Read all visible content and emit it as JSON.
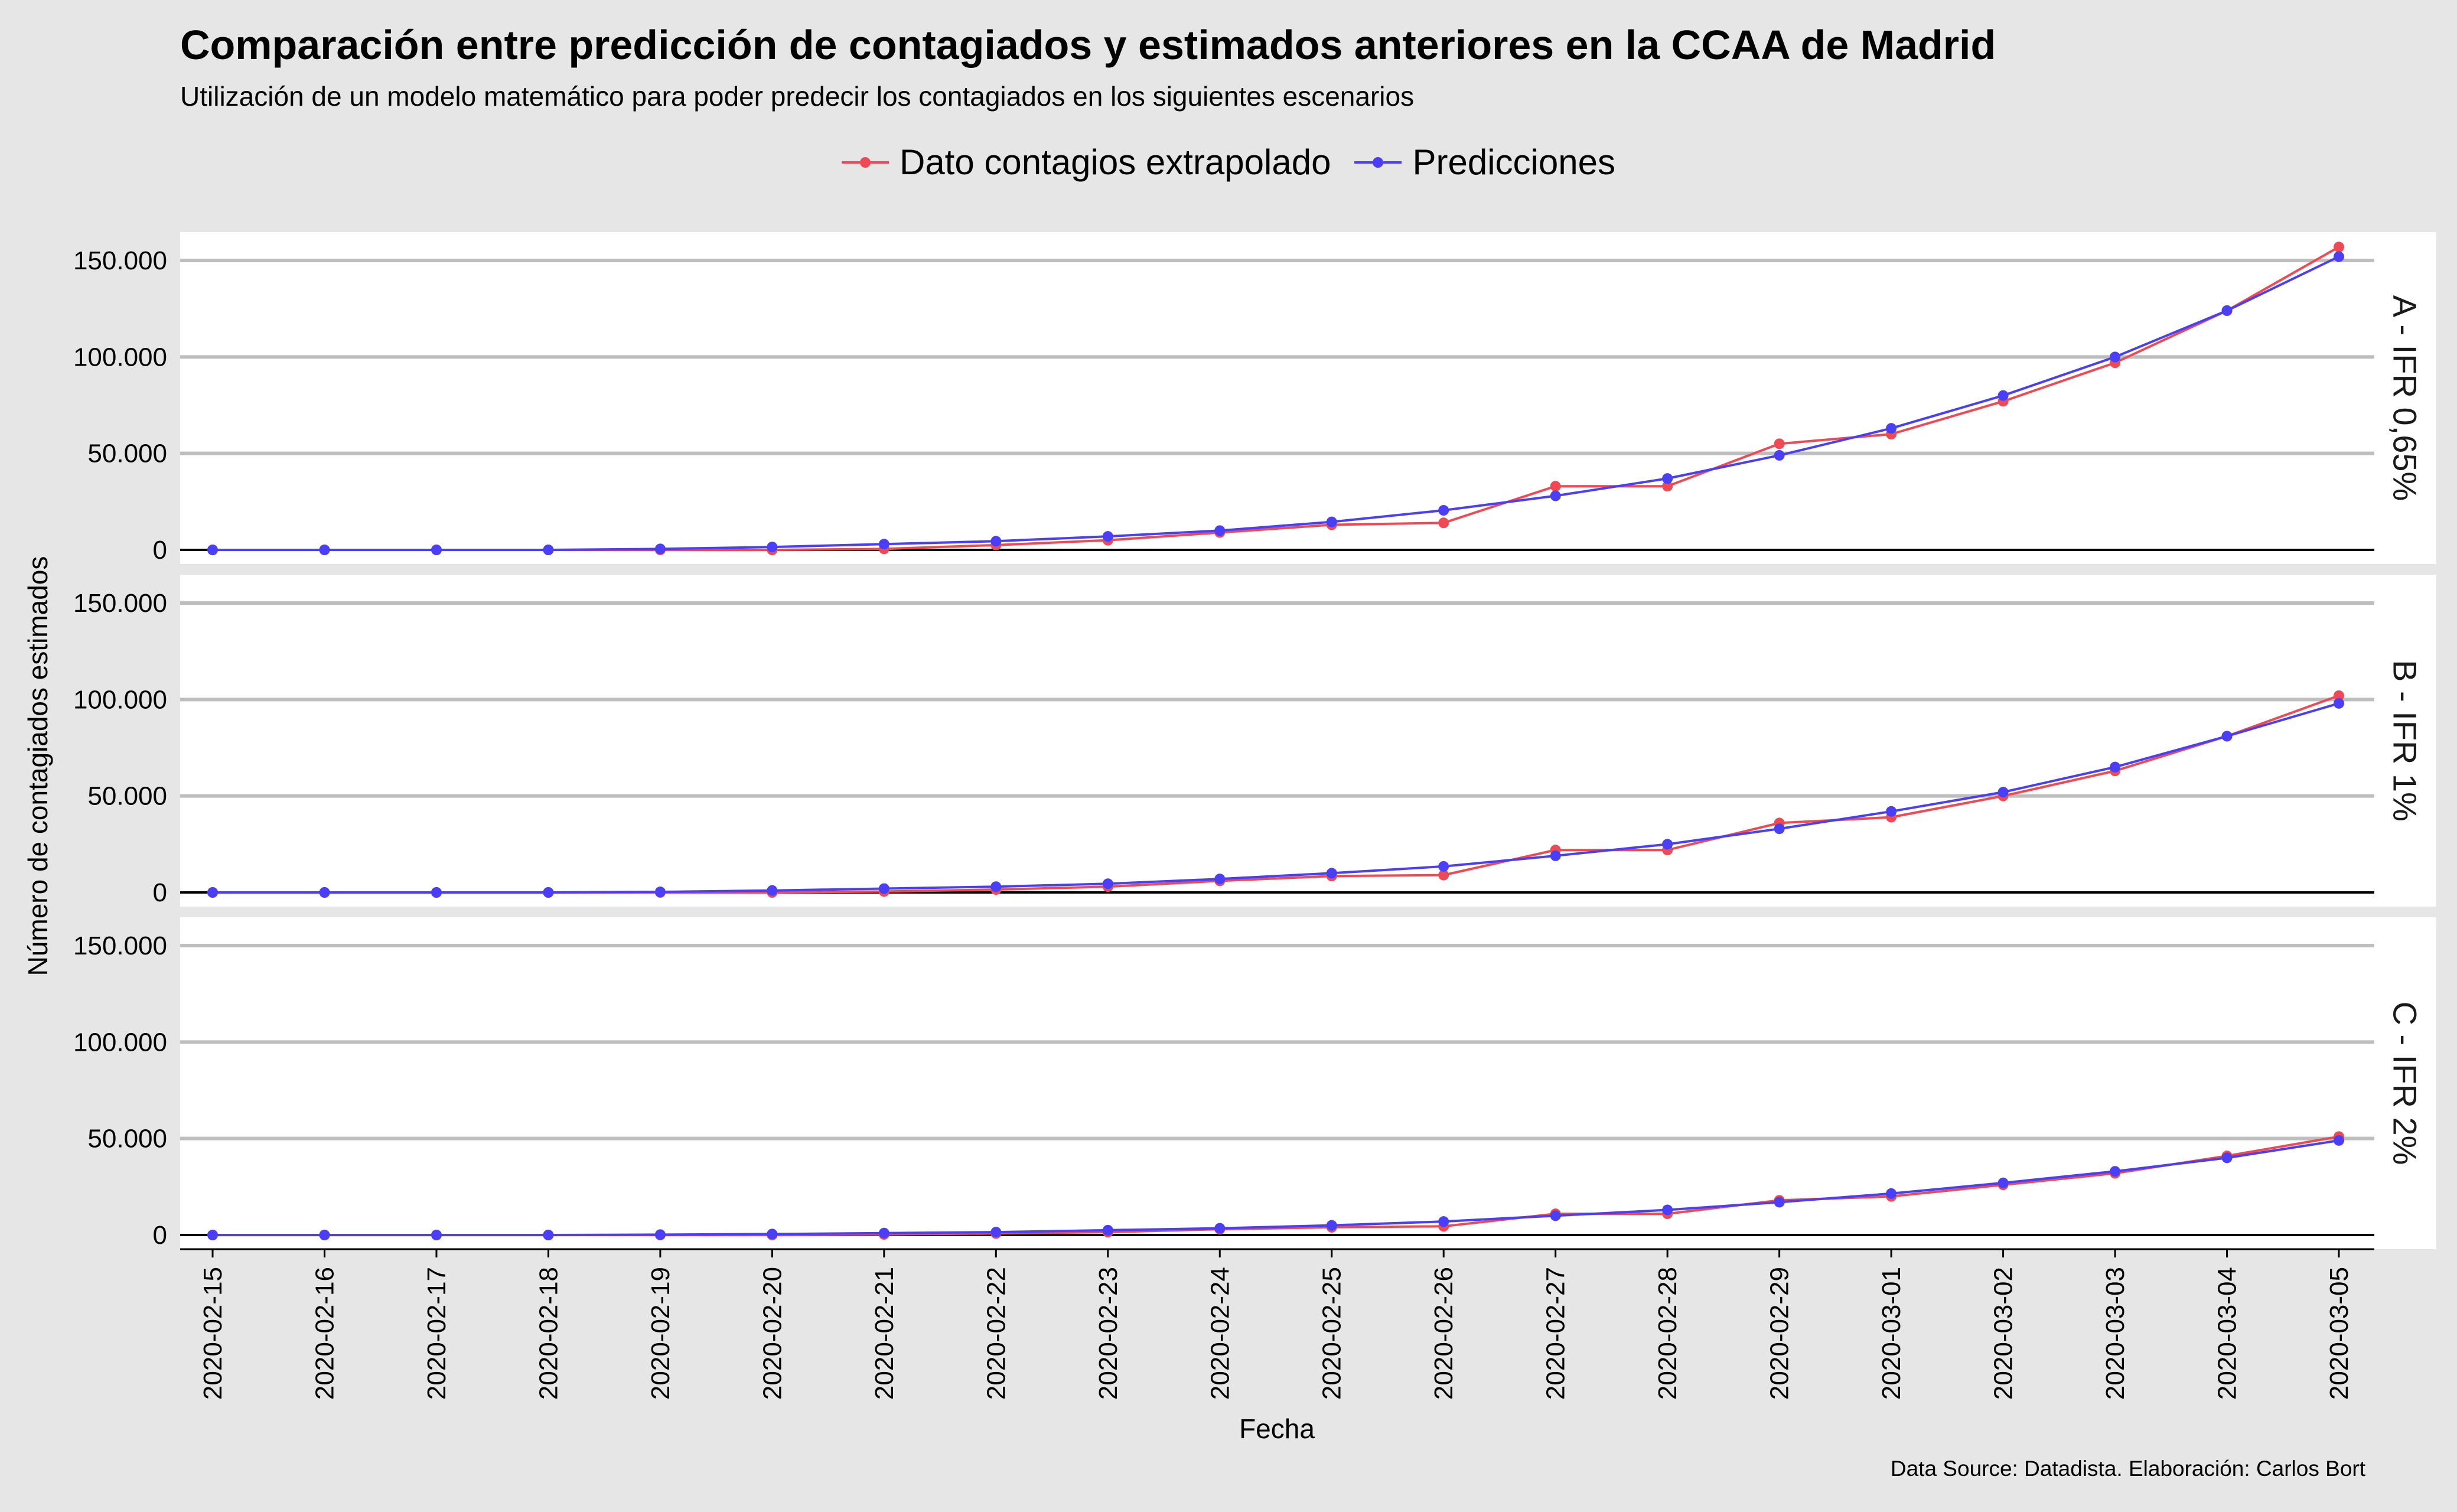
{
  "title": "Comparación entre predicción de contagiados y estimados anteriores en la CCAA de Madrid",
  "subtitle": "Utilización de un modelo matemático para poder predecir los contagiados en los siguientes escenarios",
  "caption": "Data Source: Datadista. Elaboración: Carlos Bort",
  "colors": {
    "background": "#e6e6e6",
    "panel": "#ffffff",
    "grid": "#bebebe",
    "series_extrapolado": "#ee4a55",
    "series_predicciones": "#4a3ff5"
  },
  "chart_data": {
    "type": "line",
    "title": "Comparación entre predicción de contagiados y estimados anteriores en la CCAA de Madrid",
    "xlabel": "Fecha",
    "ylabel": "Número de contagiados estimados",
    "legend_position": "top",
    "grid": true,
    "ylim": [
      0,
      150000
    ],
    "y_ticks": [
      0,
      50000,
      100000,
      150000
    ],
    "y_tick_labels": [
      "0",
      "50.000",
      "100.000",
      "150.000"
    ],
    "x": [
      "2020-02-15",
      "2020-02-16",
      "2020-02-17",
      "2020-02-18",
      "2020-02-19",
      "2020-02-20",
      "2020-02-21",
      "2020-02-22",
      "2020-02-23",
      "2020-02-24",
      "2020-02-25",
      "2020-02-26",
      "2020-02-27",
      "2020-02-28",
      "2020-02-29",
      "2020-03-01",
      "2020-03-02",
      "2020-03-03",
      "2020-03-04",
      "2020-03-05"
    ],
    "series_names": [
      "Dato contagios extrapolado",
      "Predicciones"
    ],
    "panels": [
      {
        "label": "A - IFR 0,65%",
        "series": [
          {
            "name": "Dato contagios extrapolado",
            "values": [
              0,
              0,
              0,
              0,
              0,
              0,
              500,
              2500,
              5000,
              9000,
              13000,
              14000,
              33000,
              33000,
              55000,
              60000,
              77000,
              97000,
              124000,
              157000
            ]
          },
          {
            "name": "Predicciones",
            "values": [
              0,
              0,
              0,
              0,
              500,
              1500,
              3000,
              4500,
              7000,
              10000,
              14500,
              20500,
              28000,
              37000,
              49000,
              63000,
              80000,
              100000,
              124000,
              152000
            ]
          }
        ]
      },
      {
        "label": "B - IFR 1%",
        "series": [
          {
            "name": "Dato contagios extrapolado",
            "values": [
              0,
              0,
              0,
              0,
              0,
              0,
              500,
              1500,
              3000,
              6000,
              8500,
              9000,
              22000,
              22000,
              36000,
              39000,
              50000,
              63000,
              81000,
              102000
            ]
          },
          {
            "name": "Predicciones",
            "values": [
              0,
              0,
              0,
              0,
              300,
              1000,
              2000,
              3000,
              4500,
              7000,
              10000,
              13500,
              19000,
              25000,
              33000,
              42000,
              52000,
              65000,
              81000,
              98000
            ]
          }
        ]
      },
      {
        "label": "C - IFR 2%",
        "series": [
          {
            "name": "Dato contagios extrapolado",
            "values": [
              0,
              0,
              0,
              0,
              0,
              0,
              300,
              800,
              1500,
              3000,
              4000,
              4500,
              11000,
              11000,
              18000,
              20000,
              26000,
              32000,
              41000,
              51000
            ]
          },
          {
            "name": "Predicciones",
            "values": [
              0,
              0,
              0,
              0,
              200,
              500,
              1000,
              1500,
              2500,
              3500,
              5000,
              7000,
              10000,
              13000,
              17000,
              21500,
              27000,
              33000,
              40000,
              49000
            ]
          }
        ]
      }
    ]
  }
}
